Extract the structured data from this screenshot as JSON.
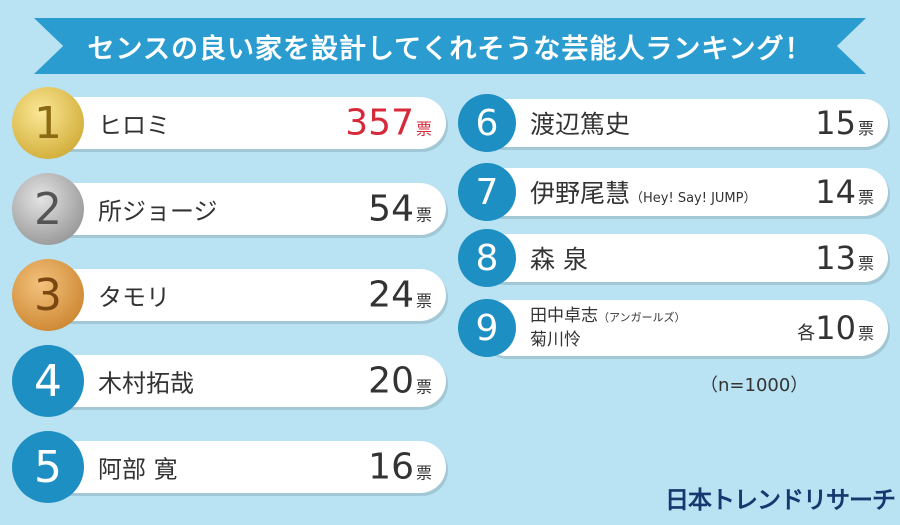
{
  "title": "センスの良い家を設計してくれそうな芸能人ランキング！",
  "unit": "票",
  "note": "（n=1000）",
  "logo": "日本トレンドリサーチ",
  "chart_data": {
    "type": "table",
    "title": "センスの良い家を設計してくれそうな芸能人ランキング！",
    "rows": [
      {
        "rank": "1",
        "name": "ヒロミ",
        "value": 357
      },
      {
        "rank": "2",
        "name": "所ジョージ",
        "value": 54
      },
      {
        "rank": "3",
        "name": "タモリ",
        "value": 24
      },
      {
        "rank": "4",
        "name": "木村拓哉",
        "value": 20
      },
      {
        "rank": "5",
        "name": "阿部 寛",
        "value": 16
      },
      {
        "rank": "6",
        "name": "渡辺篤史",
        "value": 15
      },
      {
        "rank": "7",
        "name": "伊野尾慧",
        "sub": "（Hey! Say! JUMP）",
        "value": 14
      },
      {
        "rank": "8",
        "name": "森 泉",
        "value": 13
      },
      {
        "rank": "9",
        "name": "田中卓志",
        "sub": "（アンガールズ）",
        "name2": "菊川怜",
        "prefix": "各",
        "value": 10
      }
    ]
  }
}
